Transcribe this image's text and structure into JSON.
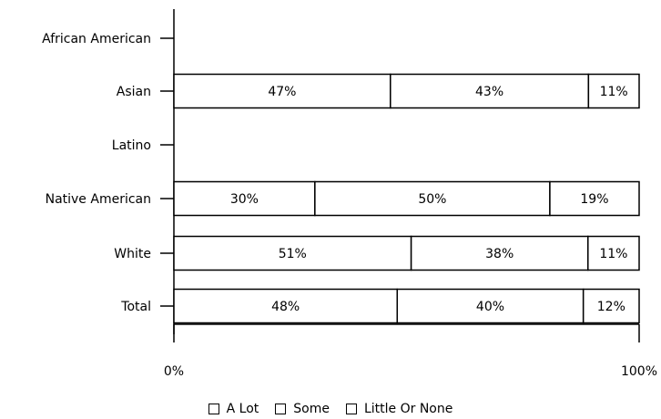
{
  "chart_data": {
    "type": "bar",
    "orientation": "horizontal",
    "stacked": true,
    "categories": [
      "African American",
      "Asian",
      "Latino",
      "Native American",
      "White",
      "Total"
    ],
    "series": [
      {
        "name": "A Lot",
        "values": [
          null,
          47,
          null,
          30,
          51,
          48
        ],
        "labels": [
          "",
          "47%",
          "",
          "30%",
          "51%",
          "48%"
        ]
      },
      {
        "name": "Some",
        "values": [
          null,
          43,
          null,
          50,
          38,
          40
        ],
        "labels": [
          "",
          "43%",
          "",
          "50%",
          "38%",
          "40%"
        ]
      },
      {
        "name": "Little Or None",
        "values": [
          null,
          11,
          null,
          19,
          11,
          12
        ],
        "labels": [
          "",
          "11%",
          "",
          "19%",
          "11%",
          "12%"
        ]
      }
    ],
    "x_ticks": [
      "0%",
      "100%"
    ],
    "xlim": [
      0,
      100
    ],
    "grid": false,
    "legend_position": "bottom"
  }
}
